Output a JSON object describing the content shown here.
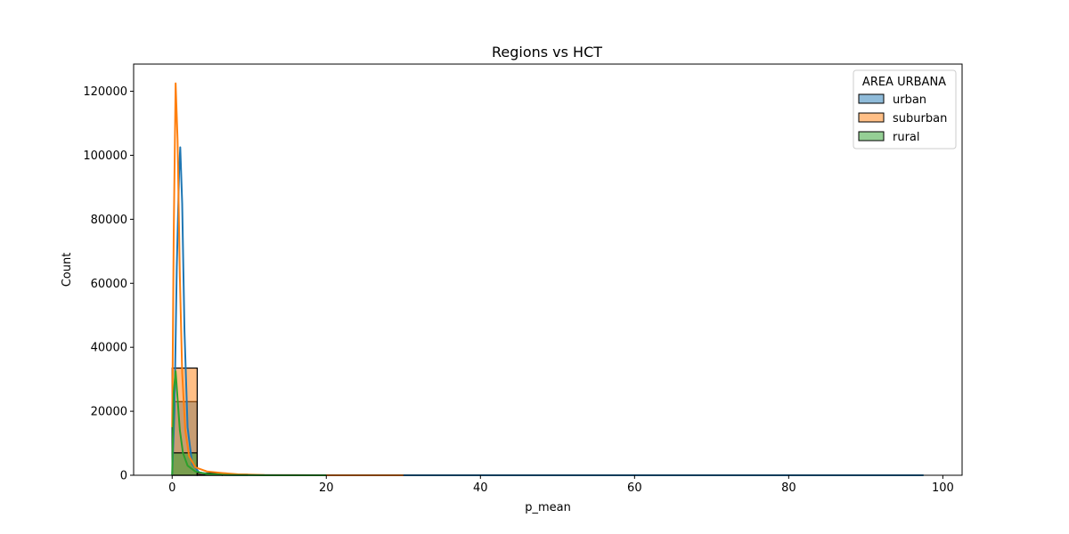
{
  "chart_data": {
    "type": "histogram",
    "title": "Regions vs HCT",
    "xlabel": "p_mean",
    "ylabel": "Count",
    "xlim": [
      -5,
      102.5
    ],
    "ylim": [
      0,
      128500
    ],
    "x_ticks": [
      0,
      20,
      40,
      60,
      80,
      100
    ],
    "y_ticks": [
      0,
      20000,
      40000,
      60000,
      80000,
      100000,
      120000
    ],
    "grid": false,
    "bin_edges": [
      0,
      3.25,
      6.5,
      9.75
    ],
    "legend": {
      "title": "AREA URBANA",
      "placement": "top-right"
    },
    "series": [
      {
        "name": "urban",
        "color": "#1f77b4",
        "counts": [
          23000,
          600,
          100
        ],
        "kde": [
          [
            0,
            0
          ],
          [
            0.3,
            20000
          ],
          [
            0.6,
            65000
          ],
          [
            0.9,
            95000
          ],
          [
            1.05,
            102500
          ],
          [
            1.3,
            85000
          ],
          [
            1.6,
            45000
          ],
          [
            2.0,
            15000
          ],
          [
            2.6,
            3500
          ],
          [
            3.5,
            900
          ],
          [
            5,
            200
          ],
          [
            8,
            60
          ],
          [
            15,
            20
          ],
          [
            30,
            5
          ],
          [
            97.5,
            0
          ]
        ]
      },
      {
        "name": "suburban",
        "color": "#ff7f0e",
        "counts": [
          33500,
          700,
          300
        ],
        "kde": [
          [
            0,
            15000
          ],
          [
            0.2,
            75000
          ],
          [
            0.45,
            122500
          ],
          [
            0.7,
            105000
          ],
          [
            1.0,
            62000
          ],
          [
            1.3,
            32000
          ],
          [
            1.7,
            14000
          ],
          [
            2.2,
            6000
          ],
          [
            3.0,
            2500
          ],
          [
            4.5,
            1200
          ],
          [
            6.5,
            700
          ],
          [
            8.5,
            300
          ],
          [
            12,
            80
          ],
          [
            20,
            10
          ],
          [
            30,
            0
          ]
        ]
      },
      {
        "name": "rural",
        "color": "#2ca02c",
        "counts": [
          7000,
          150,
          20
        ],
        "kde": [
          [
            0,
            0
          ],
          [
            0.2,
            26000
          ],
          [
            0.45,
            32500
          ],
          [
            0.7,
            24000
          ],
          [
            1.0,
            14000
          ],
          [
            1.4,
            7000
          ],
          [
            2.0,
            3000
          ],
          [
            3.0,
            1200
          ],
          [
            4.5,
            400
          ],
          [
            7,
            100
          ],
          [
            12,
            10
          ],
          [
            20,
            0
          ]
        ]
      }
    ]
  }
}
